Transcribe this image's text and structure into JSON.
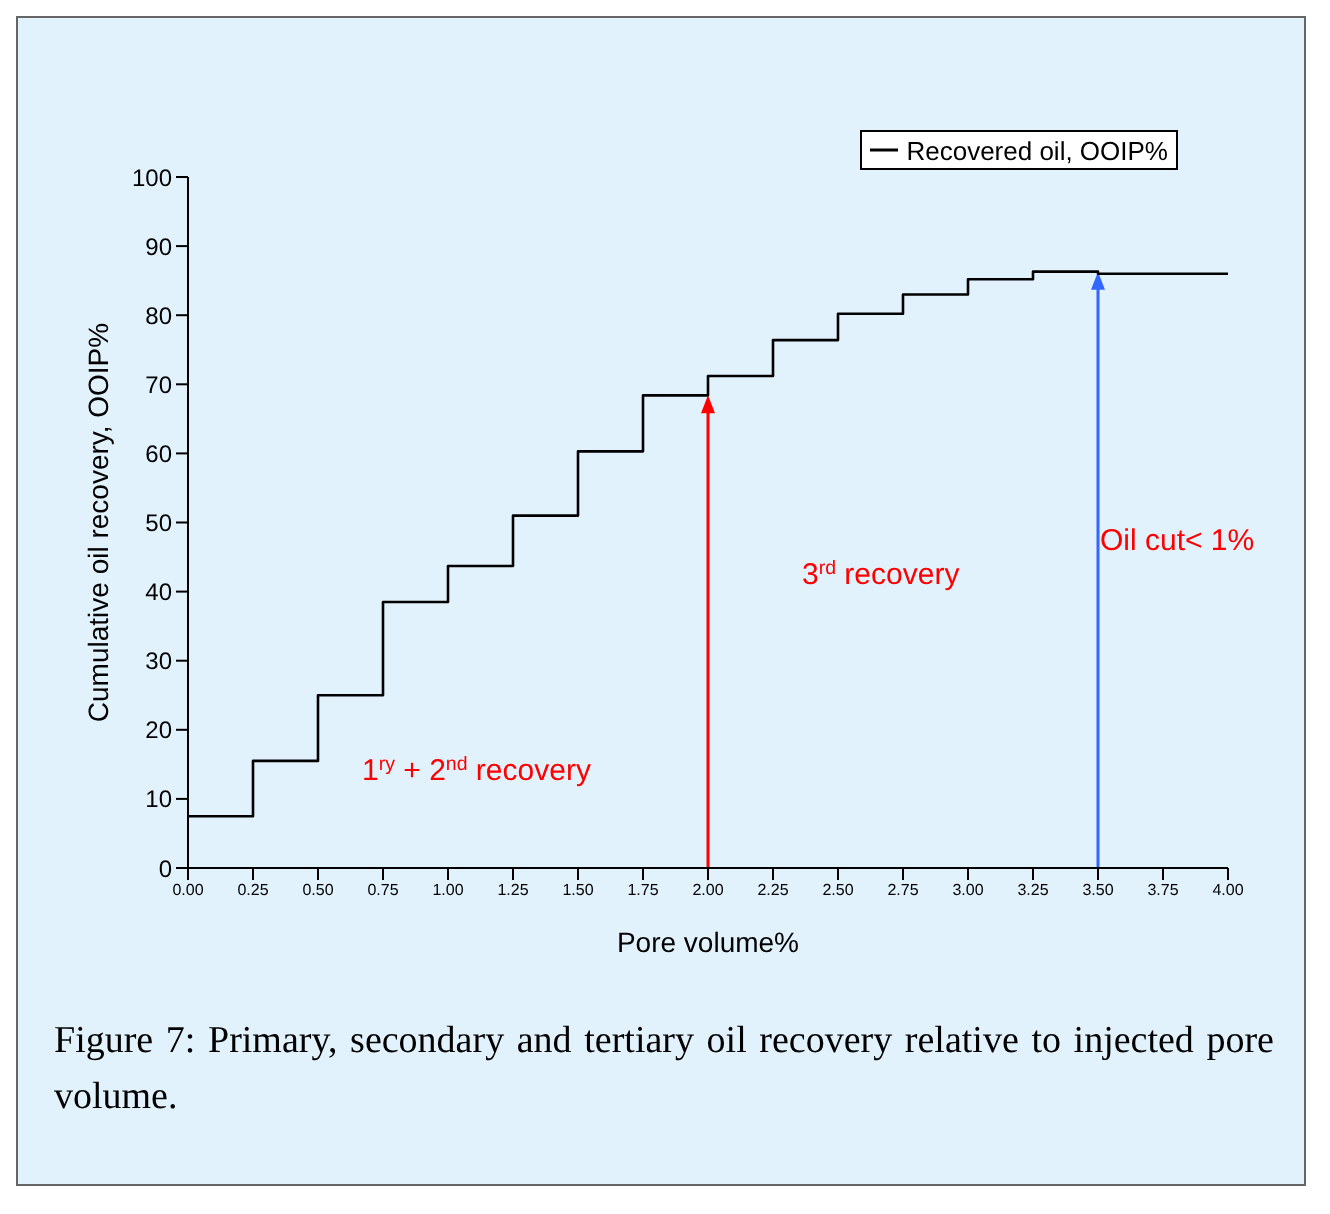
{
  "chart_data": {
    "type": "step",
    "xlabel": "Pore volume%",
    "ylabel": "Cumulative oil recovery, OOIP%",
    "x": [
      0,
      0.25,
      0.5,
      0.75,
      1.0,
      1.25,
      1.5,
      1.75,
      2.0,
      2.25,
      2.5,
      2.75,
      3.0,
      3.25,
      3.5,
      4.0
    ],
    "series": [
      {
        "name": "Recovered oil, OOIP%",
        "color": "#000000",
        "values": [
          7.5,
          15.5,
          25,
          38.5,
          43.7,
          51,
          60.3,
          68.4,
          71.2,
          76.4,
          80.2,
          83,
          85.2,
          86.3,
          86,
          86
        ]
      }
    ],
    "xlim": [
      0,
      4
    ],
    "xticks": [
      {
        "value": 0,
        "label": "0.00"
      },
      {
        "value": 0.25,
        "label": "0.25"
      },
      {
        "value": 0.5,
        "label": "0.50"
      },
      {
        "value": 0.75,
        "label": "0.75"
      },
      {
        "value": 1,
        "label": "1.00"
      },
      {
        "value": 1.25,
        "label": "1.25"
      },
      {
        "value": 1.5,
        "label": "1.50"
      },
      {
        "value": 1.75,
        "label": "1.75"
      },
      {
        "value": 2,
        "label": "2.00"
      },
      {
        "value": 2.25,
        "label": "2.25"
      },
      {
        "value": 2.5,
        "label": "2.50"
      },
      {
        "value": 2.75,
        "label": "2.75"
      },
      {
        "value": 3,
        "label": "3.00"
      },
      {
        "value": 3.25,
        "label": "3.25"
      },
      {
        "value": 3.5,
        "label": "3.50"
      },
      {
        "value": 3.75,
        "label": "3.75"
      },
      {
        "value": 4,
        "label": "4.00"
      }
    ],
    "ylim": [
      0,
      100
    ],
    "yticks": [
      0,
      10,
      20,
      30,
      40,
      50,
      60,
      70,
      80,
      90,
      100
    ],
    "ref_lines": [
      {
        "axis": "x",
        "value": 2,
        "color": "#ff0000"
      },
      {
        "axis": "x",
        "value": 3.5,
        "color": "#3366ff"
      }
    ],
    "annotations": [
      "1$^{ry}$ + 2$^{nd}$ recovery",
      "3$^{rd}$ recovery",
      "Oil cut< 1%",
      "Figure 7: Primary, secondary and tertiary oil recovery relative to injected pore volume."
    ],
    "grid": false,
    "legend": "top right",
    "marker": "none",
    "line_style": "solid"
  }
}
